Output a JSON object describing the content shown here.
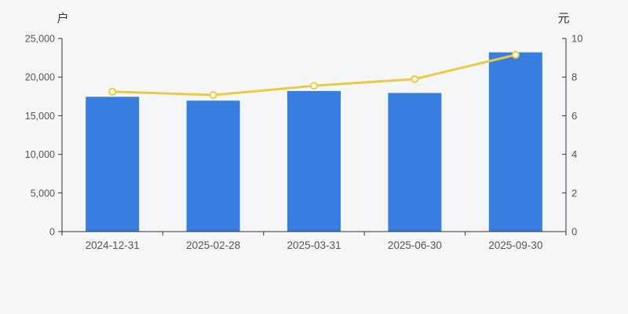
{
  "page": {
    "background": "#f5f6f7"
  },
  "chart_data": {
    "type": "bar+line",
    "categories": [
      "2024-12-31",
      "2025-02-28",
      "2025-03-31",
      "2025-06-30",
      "2025-09-30"
    ],
    "bar_series": {
      "axis": "left",
      "unit": "户",
      "color": "#377EDE",
      "values": [
        17450,
        16950,
        18200,
        17950,
        23200
      ]
    },
    "line_series": {
      "axis": "right",
      "unit": "元",
      "color": "#EACA43",
      "marker_fill": "#FFFFFF",
      "values": [
        7.25,
        7.07,
        7.55,
        7.9,
        9.15
      ]
    },
    "left_axis": {
      "title": "户",
      "min": 0,
      "max": 25000,
      "tick_step": 5000,
      "tick_labels": [
        "0",
        "5,000",
        "10,000",
        "15,000",
        "20,000",
        "25,000"
      ]
    },
    "right_axis": {
      "title": "元",
      "min": 0,
      "max": 10,
      "tick_step": 2,
      "tick_labels": [
        "0",
        "2",
        "4",
        "6",
        "8",
        "10"
      ]
    },
    "legend": "none",
    "grid": "off",
    "axis_color": "#333333",
    "tick_label_color": "#555555"
  }
}
